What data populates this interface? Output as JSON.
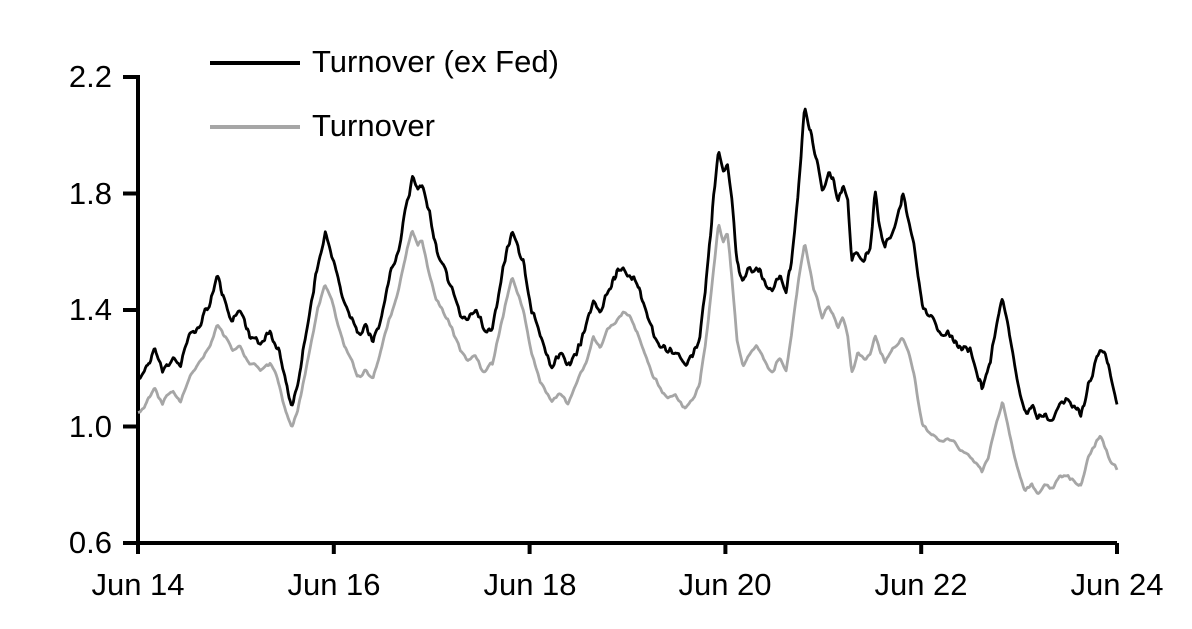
{
  "chart_data": {
    "type": "line",
    "title": "",
    "xlabel": "",
    "ylabel": "",
    "grid": false,
    "legend_position": "top-left",
    "x_axis": {
      "tick_labels": [
        "Jun 14",
        "Jun 16",
        "Jun 18",
        "Jun 20",
        "Jun 22",
        "Jun 24"
      ],
      "tick_t": [
        0,
        2,
        4,
        6,
        8,
        10
      ],
      "range_t_years_from_jun_2014": [
        0,
        10
      ]
    },
    "y_axis": {
      "tick_labels": [
        "2.2",
        "1.8",
        "1.4",
        "1.0",
        "0.6"
      ],
      "tick_values": [
        2.2,
        1.8,
        1.4,
        1.0,
        0.6
      ],
      "min": 0.6,
      "max": 2.2
    },
    "colors": {
      "black_series": "#000000",
      "gray_series": "#a6a6a6",
      "axis": "#000000"
    },
    "t_years_from_jun_2014": [
      0.02,
      0.1,
      0.17,
      0.25,
      0.36,
      0.43,
      0.53,
      0.63,
      0.74,
      0.81,
      0.89,
      0.97,
      1.04,
      1.14,
      1.25,
      1.35,
      1.45,
      1.51,
      1.57,
      1.63,
      1.76,
      1.84,
      1.91,
      1.98,
      2.06,
      2.13,
      2.24,
      2.32,
      2.4,
      2.49,
      2.57,
      2.66,
      2.73,
      2.8,
      2.86,
      2.9,
      2.98,
      3.05,
      3.12,
      3.19,
      3.29,
      3.37,
      3.45,
      3.54,
      3.62,
      3.7,
      3.76,
      3.82,
      3.88,
      3.94,
      4.02,
      4.11,
      4.23,
      4.31,
      4.39,
      4.47,
      4.58,
      4.65,
      4.72,
      4.8,
      4.88,
      4.95,
      5.03,
      5.1,
      5.18,
      5.26,
      5.33,
      5.41,
      5.49,
      5.59,
      5.66,
      5.74,
      5.82,
      5.88,
      5.93,
      5.98,
      6.02,
      6.07,
      6.12,
      6.18,
      6.25,
      6.32,
      6.39,
      6.48,
      6.56,
      6.62,
      6.68,
      6.74,
      6.81,
      6.86,
      6.9,
      6.94,
      6.99,
      7.05,
      7.1,
      7.15,
      7.2,
      7.25,
      7.29,
      7.35,
      7.42,
      7.48,
      7.53,
      7.58,
      7.63,
      7.68,
      7.75,
      7.81,
      7.87,
      7.93,
      7.97,
      8.01,
      8.06,
      8.12,
      8.19,
      8.27,
      8.35,
      8.42,
      8.5,
      8.57,
      8.62,
      8.68,
      8.75,
      8.83,
      8.89,
      8.95,
      9.01,
      9.06,
      9.13,
      9.19,
      9.26,
      9.34,
      9.42,
      9.5,
      9.57,
      9.63,
      9.7,
      9.78,
      9.83,
      9.89,
      9.94,
      10.0
    ],
    "series": [
      {
        "name": "Turnover (ex Fed)",
        "color": "#000000",
        "values": [
          1.16,
          1.22,
          1.28,
          1.2,
          1.25,
          1.21,
          1.3,
          1.35,
          1.42,
          1.51,
          1.44,
          1.38,
          1.42,
          1.33,
          1.29,
          1.33,
          1.26,
          1.15,
          1.08,
          1.14,
          1.4,
          1.55,
          1.66,
          1.58,
          1.48,
          1.42,
          1.31,
          1.35,
          1.31,
          1.4,
          1.52,
          1.6,
          1.74,
          1.87,
          1.82,
          1.85,
          1.72,
          1.6,
          1.56,
          1.5,
          1.41,
          1.38,
          1.41,
          1.34,
          1.35,
          1.5,
          1.6,
          1.67,
          1.63,
          1.58,
          1.42,
          1.31,
          1.22,
          1.24,
          1.2,
          1.26,
          1.36,
          1.44,
          1.4,
          1.47,
          1.51,
          1.55,
          1.53,
          1.49,
          1.4,
          1.32,
          1.28,
          1.25,
          1.26,
          1.22,
          1.25,
          1.32,
          1.55,
          1.78,
          1.94,
          1.86,
          1.91,
          1.76,
          1.56,
          1.48,
          1.54,
          1.57,
          1.51,
          1.45,
          1.52,
          1.48,
          1.6,
          1.8,
          2.11,
          2.02,
          1.95,
          1.9,
          1.82,
          1.86,
          1.83,
          1.77,
          1.84,
          1.78,
          1.58,
          1.62,
          1.59,
          1.62,
          1.8,
          1.68,
          1.62,
          1.66,
          1.72,
          1.8,
          1.72,
          1.64,
          1.52,
          1.43,
          1.38,
          1.36,
          1.33,
          1.32,
          1.3,
          1.28,
          1.24,
          1.19,
          1.14,
          1.18,
          1.3,
          1.44,
          1.36,
          1.22,
          1.1,
          1.04,
          1.08,
          1.03,
          1.05,
          1.03,
          1.07,
          1.09,
          1.05,
          1.02,
          1.13,
          1.22,
          1.28,
          1.24,
          1.16,
          1.1
        ]
      },
      {
        "name": "Turnover",
        "color": "#a6a6a6",
        "values": [
          1.04,
          1.1,
          1.14,
          1.08,
          1.12,
          1.08,
          1.17,
          1.22,
          1.28,
          1.35,
          1.3,
          1.26,
          1.29,
          1.22,
          1.18,
          1.21,
          1.14,
          1.06,
          1.0,
          1.05,
          1.27,
          1.41,
          1.49,
          1.43,
          1.33,
          1.26,
          1.17,
          1.2,
          1.17,
          1.26,
          1.37,
          1.46,
          1.57,
          1.68,
          1.62,
          1.64,
          1.52,
          1.44,
          1.4,
          1.35,
          1.27,
          1.23,
          1.25,
          1.19,
          1.21,
          1.34,
          1.43,
          1.51,
          1.46,
          1.4,
          1.26,
          1.15,
          1.09,
          1.11,
          1.07,
          1.13,
          1.22,
          1.31,
          1.27,
          1.33,
          1.36,
          1.39,
          1.37,
          1.33,
          1.24,
          1.17,
          1.13,
          1.1,
          1.12,
          1.05,
          1.09,
          1.16,
          1.35,
          1.55,
          1.7,
          1.62,
          1.66,
          1.5,
          1.3,
          1.22,
          1.26,
          1.28,
          1.22,
          1.17,
          1.24,
          1.2,
          1.32,
          1.48,
          1.63,
          1.55,
          1.48,
          1.44,
          1.37,
          1.41,
          1.38,
          1.33,
          1.37,
          1.31,
          1.19,
          1.25,
          1.22,
          1.25,
          1.31,
          1.26,
          1.22,
          1.26,
          1.29,
          1.31,
          1.25,
          1.17,
          1.08,
          1.01,
          0.99,
          0.98,
          0.96,
          0.95,
          0.94,
          0.92,
          0.9,
          0.87,
          0.84,
          0.88,
          0.98,
          1.08,
          1.0,
          0.9,
          0.82,
          0.78,
          0.81,
          0.78,
          0.8,
          0.78,
          0.82,
          0.84,
          0.81,
          0.79,
          0.88,
          0.94,
          0.97,
          0.93,
          0.88,
          0.85
        ]
      }
    ]
  }
}
